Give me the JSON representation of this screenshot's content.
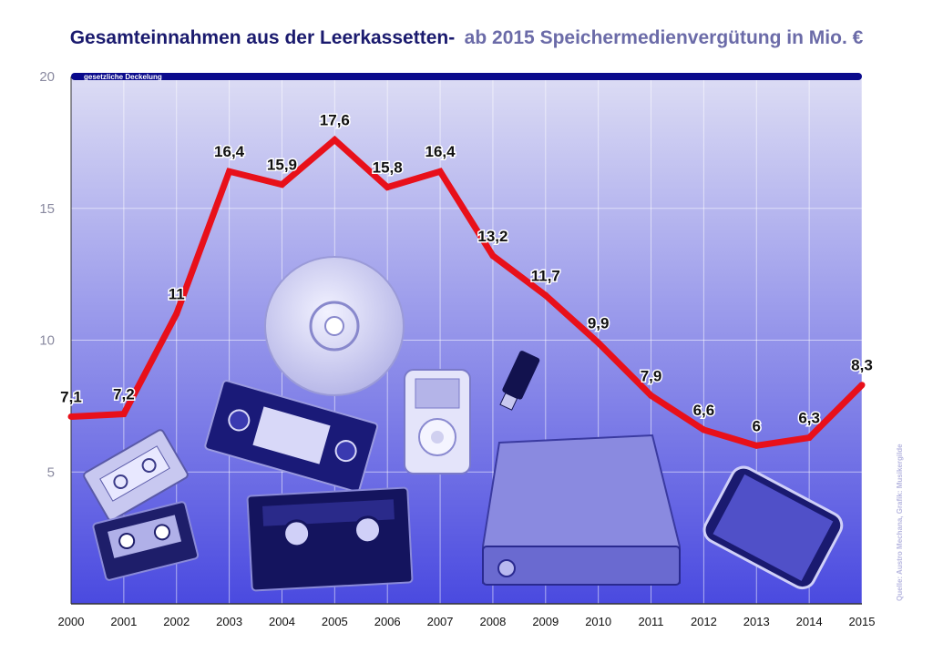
{
  "title": {
    "main": "Gesamteinnahmen aus der Leerkassetten-",
    "sub": "ab 2015 Speichermedienvergütung in Mio. €"
  },
  "source": "Quelle: Austro Mechana, Grafik: Musikergilde",
  "cap_label": "gesetzliche Deckelung",
  "colors": {
    "line": "#e8101a",
    "title": "#1a1a6e",
    "subtitle": "#6b6ba8",
    "cap": "#0a0a8c",
    "plot_top": "#dcdcf4",
    "plot_bottom": "#4a4ae0"
  },
  "chart_data": {
    "type": "line",
    "categories": [
      "2000",
      "2001",
      "2002",
      "2003",
      "2004",
      "2005",
      "2006",
      "2007",
      "2008",
      "2009",
      "2010",
      "2011",
      "2012",
      "2013",
      "2014",
      "2015"
    ],
    "values": [
      7.1,
      7.2,
      11,
      16.4,
      15.9,
      17.6,
      15.8,
      16.4,
      13.2,
      11.7,
      9.9,
      7.9,
      6.6,
      6,
      6.3,
      8.3
    ],
    "data_labels": [
      "7,1",
      "7,2",
      "11",
      "16,4",
      "15,9",
      "17,6",
      "15,8",
      "16,4",
      "13,2",
      "11,7",
      "9,9",
      "7,9",
      "6,6",
      "6",
      "6,3",
      "8,3"
    ],
    "yticks": [
      "5",
      "10",
      "15",
      "20"
    ],
    "ylim": [
      0,
      20
    ],
    "cap_value": 20,
    "grid": true,
    "background_icons": [
      "cd-icon",
      "cassette-icon",
      "vhs-tape-icon",
      "mp3-player-icon",
      "usb-stick-icon",
      "external-hdd-icon",
      "smartphone-icon"
    ]
  }
}
